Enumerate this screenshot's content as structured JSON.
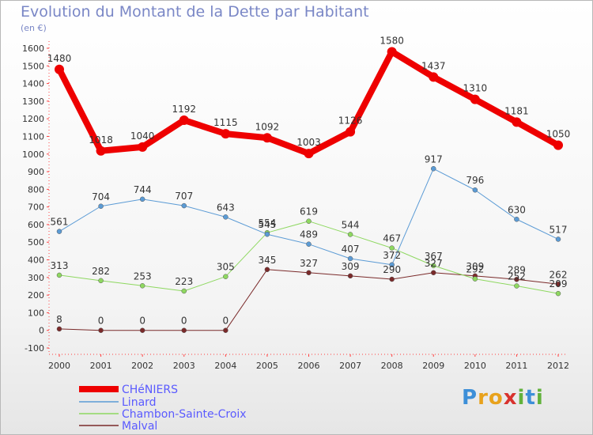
{
  "title": "Evolution du Montant de la Dette par Habitant",
  "subtitle": "(en €)",
  "logo": {
    "letters": [
      "P",
      "r",
      "o",
      "x",
      "i",
      "t",
      "i"
    ],
    "colors": [
      "#3d8fd8",
      "#e8a21c",
      "#e8a21c",
      "#d8322e",
      "#62b23c",
      "#3d8fd8",
      "#62b23c"
    ]
  },
  "chart_data": {
    "type": "line",
    "title": "Evolution du Montant de la Dette par Habitant",
    "ylabel": "(en €)",
    "ylim": [
      -100,
      1600
    ],
    "yticks": [
      -100,
      0,
      100,
      200,
      300,
      400,
      500,
      600,
      700,
      800,
      900,
      1000,
      1100,
      1200,
      1300,
      1400,
      1500,
      1600
    ],
    "x": [
      "2000",
      "2001",
      "2002",
      "2003",
      "2004",
      "2005",
      "2006",
      "2007",
      "2008",
      "2009",
      "2010",
      "2011",
      "2012"
    ],
    "grid": false,
    "legend_position": "bottom-left",
    "series": [
      {
        "name": "CHéNIERS",
        "color": "#ee0000",
        "values": [
          1480,
          1018,
          1040,
          1192,
          1115,
          1092,
          1003,
          1126,
          1580,
          1437,
          1310,
          1181,
          1050
        ]
      },
      {
        "name": "Linard",
        "color": "#5b9bd5",
        "values": [
          561,
          704,
          744,
          707,
          643,
          545,
          489,
          407,
          372,
          917,
          796,
          630,
          517
        ]
      },
      {
        "name": "Chambon-Sainte-Croix",
        "color": "#8ed860",
        "values": [
          313,
          282,
          253,
          223,
          305,
          554,
          619,
          544,
          467,
          367,
          292,
          252,
          209
        ]
      },
      {
        "name": "Malval",
        "color": "#7a2a2a",
        "values": [
          8,
          0,
          0,
          0,
          0,
          345,
          327,
          309,
          290,
          327,
          309,
          289,
          262
        ]
      }
    ]
  }
}
